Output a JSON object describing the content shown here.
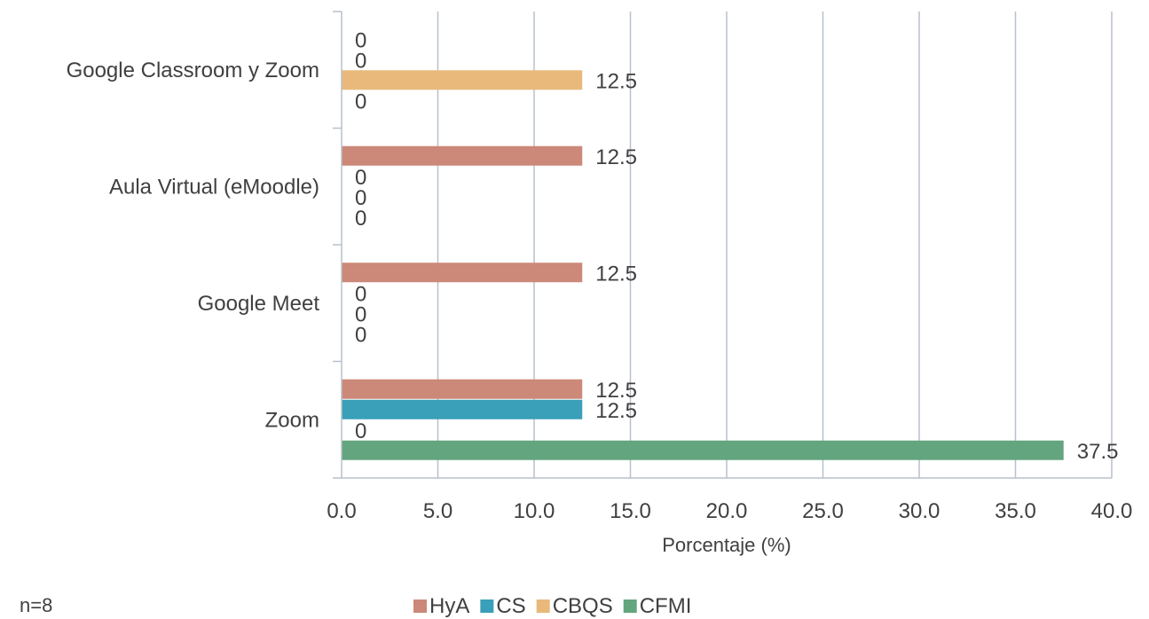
{
  "chart_data": {
    "type": "bar",
    "orientation": "horizontal",
    "categories": [
      "Google Classroom y Zoom",
      "Aula Virtual (eMoodle)",
      "Google Meet",
      "Zoom"
    ],
    "series": [
      {
        "name": "HyA",
        "color": "#cc8878",
        "values": [
          0,
          12.5,
          12.5,
          12.5
        ]
      },
      {
        "name": "CS",
        "color": "#3a9fb8",
        "values": [
          0,
          0,
          0,
          12.5
        ]
      },
      {
        "name": "CBQS",
        "color": "#e9b97c",
        "values": [
          12.5,
          0,
          0,
          0
        ]
      },
      {
        "name": "CFMI",
        "color": "#63a57e",
        "values": [
          0,
          0,
          0,
          37.5
        ]
      }
    ],
    "xlabel": "Porcentaje (%)",
    "xlim": [
      0,
      40
    ],
    "xticks": [
      "0.0",
      "5.0",
      "10.0",
      "15.0",
      "20.0",
      "25.0",
      "30.0",
      "35.0",
      "40.0"
    ],
    "grid": true,
    "legend_position": "bottom",
    "note": "n=8"
  }
}
